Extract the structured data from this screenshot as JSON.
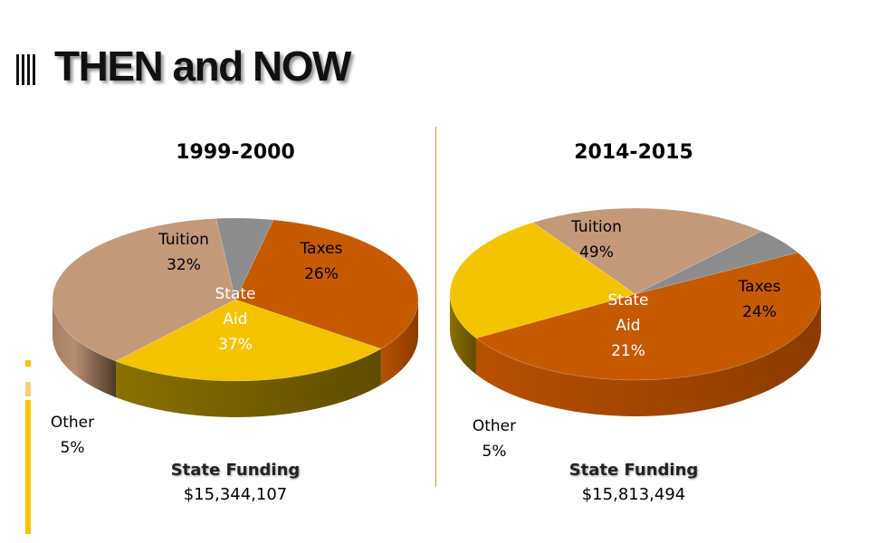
{
  "header": {
    "title": "THEN and NOW"
  },
  "theme": {
    "accent": "#f5c400",
    "accent_light": "#f5d27a",
    "divider": "#c9a227"
  },
  "chart_data": [
    {
      "type": "pie",
      "title": "1999-2000",
      "slices": [
        {
          "name": "Tuition",
          "value": 32,
          "label": "32%",
          "color": "#c55a00"
        },
        {
          "name": "Taxes",
          "value": 26,
          "label": "26%",
          "color": "#f5c400"
        },
        {
          "name": "State Aid",
          "value": 37,
          "label": "37%",
          "color": "#c4997a"
        },
        {
          "name": "Other",
          "value": 5,
          "label": "5%",
          "color": "#8c8c8c"
        }
      ],
      "footer": {
        "heading": "State Funding",
        "value": "$15,344,107"
      }
    },
    {
      "type": "pie",
      "title": "2014-2015",
      "slices": [
        {
          "name": "Tuition",
          "value": 49,
          "label": "49%",
          "color": "#c55a00"
        },
        {
          "name": "Taxes",
          "value": 24,
          "label": "24%",
          "color": "#f5c400"
        },
        {
          "name": "State Aid",
          "value": 21,
          "label": "21%",
          "color": "#c4997a"
        },
        {
          "name": "Other",
          "value": 5,
          "label": "5%",
          "color": "#8c8c8c"
        }
      ],
      "footer": {
        "heading": "State Funding",
        "value": "$15,813,494"
      }
    }
  ]
}
